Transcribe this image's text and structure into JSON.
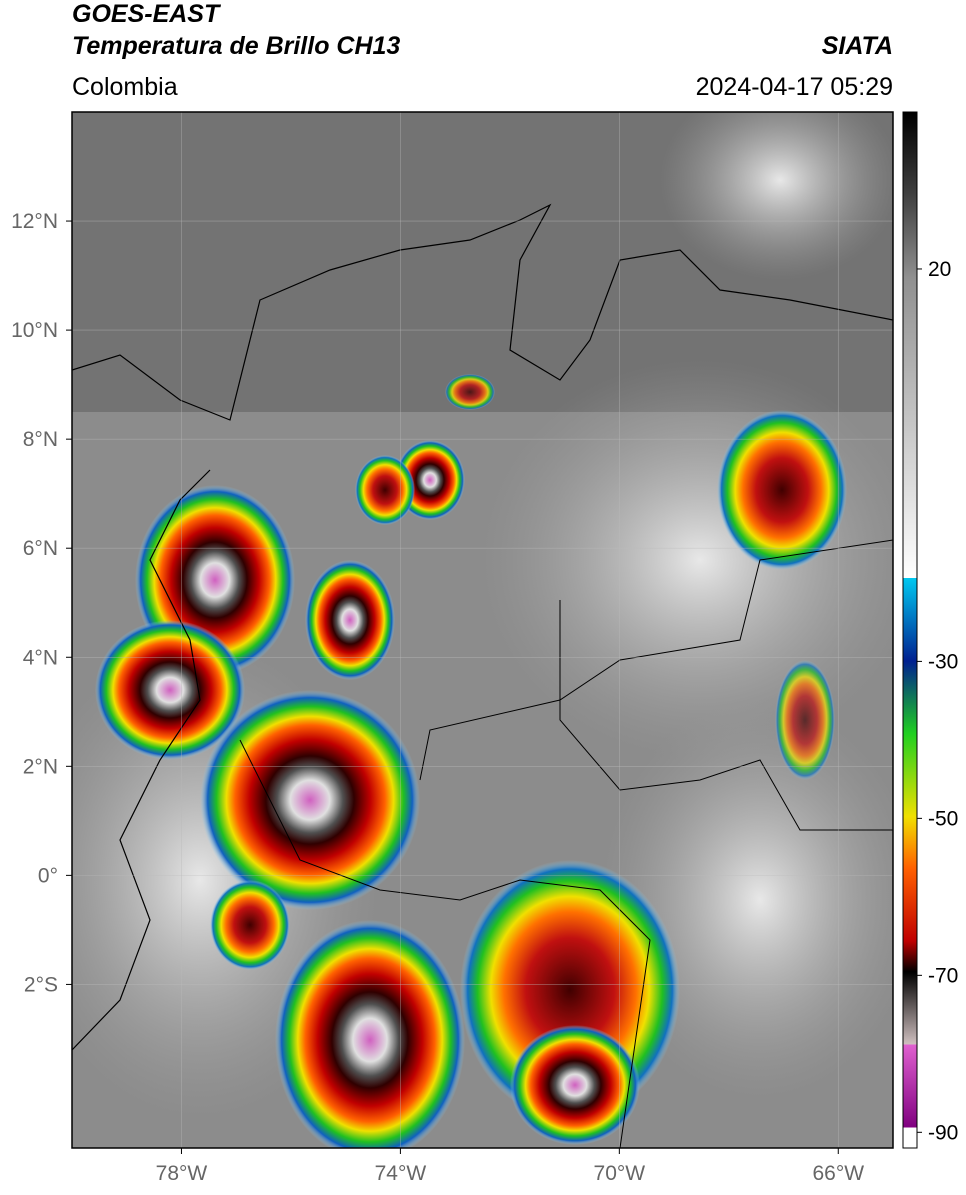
{
  "header": {
    "title_line1": "GOES-EAST",
    "title_line2": "Temperatura de Brillo CH13",
    "source": "SIATA",
    "region": "Colombia",
    "timestamp": "2024-04-17 05:29"
  },
  "map": {
    "xlim": [
      -80,
      -65
    ],
    "ylim": [
      -5,
      14
    ],
    "xticks": [
      {
        "value": -78,
        "label": "78°W"
      },
      {
        "value": -74,
        "label": "74°W"
      },
      {
        "value": -70,
        "label": "70°W"
      },
      {
        "value": -66,
        "label": "66°W"
      }
    ],
    "yticks": [
      {
        "value": 12,
        "label": "12°N"
      },
      {
        "value": 10,
        "label": "10°N"
      },
      {
        "value": 8,
        "label": "8°N"
      },
      {
        "value": 6,
        "label": "6°N"
      },
      {
        "value": 4,
        "label": "4°N"
      },
      {
        "value": 2,
        "label": "2°N"
      },
      {
        "value": 0,
        "label": "0°"
      },
      {
        "value": -2,
        "label": "2°S"
      }
    ],
    "grid": true
  },
  "colorbar": {
    "lim": [
      -92,
      40
    ],
    "ticks": [
      20,
      -30,
      -50,
      -70,
      -90
    ]
  }
}
